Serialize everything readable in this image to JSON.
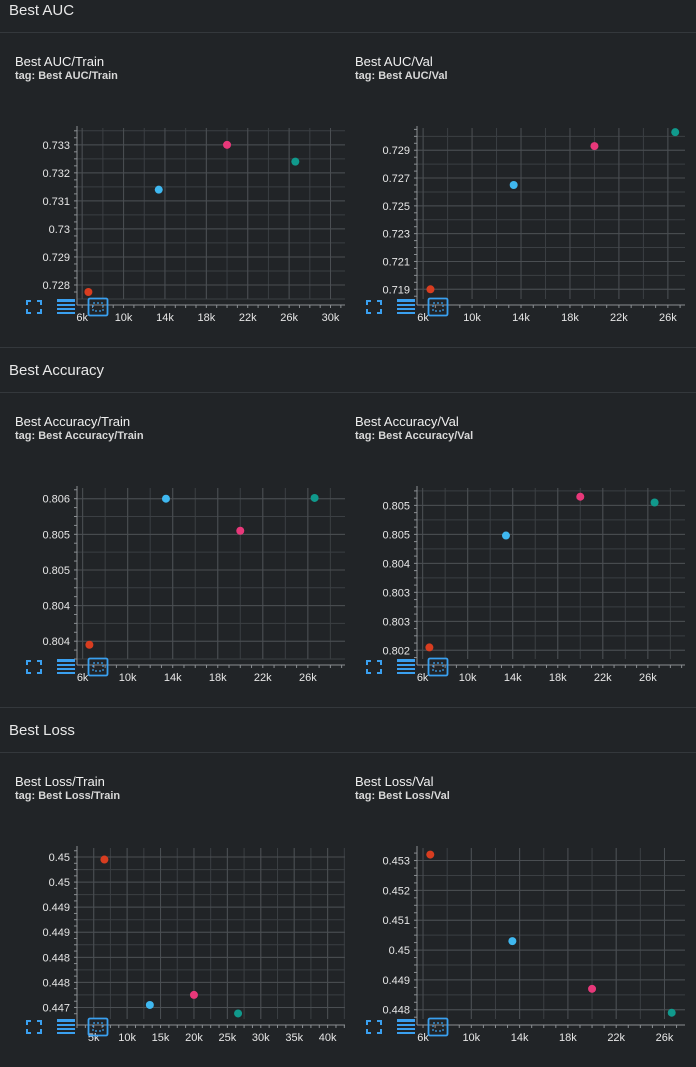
{
  "sections": [
    {
      "title": "Best AUC"
    },
    {
      "title": "Best Accuracy"
    },
    {
      "title": "Best Loss"
    }
  ],
  "colors": {
    "run1": "#d83d20",
    "run2": "#3fb8f0",
    "run3": "#e8387a",
    "run4": "#10998c"
  },
  "icons": [
    "fullscreen-icon",
    "data-table-icon",
    "fit-domain-icon"
  ],
  "chart_data": [
    {
      "type": "scatter",
      "title": "Best AUC/Train",
      "tag": "tag: Best AUC/Train",
      "xticks": [
        "6k",
        "10k",
        "14k",
        "18k",
        "22k",
        "26k",
        "30k"
      ],
      "xtick_values": [
        6000,
        10000,
        14000,
        18000,
        22000,
        26000,
        30000
      ],
      "yticks": [
        "0.728",
        "0.729",
        "0.73",
        "0.731",
        "0.732",
        "0.733"
      ],
      "ytick_values": [
        0.728,
        0.729,
        0.73,
        0.731,
        0.732,
        0.733
      ],
      "xlim": [
        5500,
        31400
      ],
      "ylim": [
        0.7275,
        0.7336
      ],
      "points": [
        {
          "x": 6600,
          "y": 0.72775,
          "color": "#d83d20"
        },
        {
          "x": 13400,
          "y": 0.7314,
          "color": "#3fb8f0"
        },
        {
          "x": 20000,
          "y": 0.733,
          "color": "#e8387a"
        },
        {
          "x": 26600,
          "y": 0.7324,
          "color": "#10998c"
        }
      ]
    },
    {
      "type": "scatter",
      "title": "Best AUC/Val",
      "tag": "tag: Best AUC/Val",
      "xticks": [
        "6k",
        "10k",
        "14k",
        "18k",
        "22k",
        "26k"
      ],
      "xtick_values": [
        6000,
        10000,
        14000,
        18000,
        22000,
        26000
      ],
      "yticks": [
        "0.719",
        "0.721",
        "0.723",
        "0.725",
        "0.727",
        "0.729"
      ],
      "ytick_values": [
        0.719,
        0.721,
        0.723,
        0.725,
        0.727,
        0.729
      ],
      "xlim": [
        5500,
        27400
      ],
      "ylim": [
        0.7183,
        0.7306
      ],
      "points": [
        {
          "x": 6600,
          "y": 0.719,
          "color": "#d83d20"
        },
        {
          "x": 13400,
          "y": 0.7265,
          "color": "#3fb8f0"
        },
        {
          "x": 20000,
          "y": 0.7293,
          "color": "#e8387a"
        },
        {
          "x": 26600,
          "y": 0.7303,
          "color": "#10998c"
        }
      ]
    },
    {
      "type": "scatter",
      "title": "Best Accuracy/Train",
      "tag": "tag: Best Accuracy/Train",
      "xticks": [
        "6k",
        "10k",
        "14k",
        "18k",
        "22k",
        "26k"
      ],
      "xtick_values": [
        6000,
        10000,
        14000,
        18000,
        22000,
        26000
      ],
      "yticks": [
        "0.804",
        "0.804",
        "0.805",
        "0.805",
        "0.806"
      ],
      "ytick_values": [
        0.8038,
        0.8043,
        0.8048,
        0.8053,
        0.8058
      ],
      "xlim": [
        5500,
        29300
      ],
      "ylim": [
        0.80355,
        0.80595
      ],
      "points": [
        {
          "x": 6600,
          "y": 0.80375,
          "color": "#d83d20"
        },
        {
          "x": 13400,
          "y": 0.8058,
          "color": "#3fb8f0"
        },
        {
          "x": 20000,
          "y": 0.80535,
          "color": "#e8387a"
        },
        {
          "x": 26600,
          "y": 0.80581,
          "color": "#10998c"
        }
      ]
    },
    {
      "type": "scatter",
      "title": "Best Accuracy/Val",
      "tag": "tag: Best Accuracy/Val",
      "xticks": [
        "6k",
        "10k",
        "14k",
        "18k",
        "22k",
        "26k"
      ],
      "xtick_values": [
        6000,
        10000,
        14000,
        18000,
        22000,
        26000
      ],
      "yticks": [
        "0.802",
        "0.803",
        "0.803",
        "0.804",
        "0.805",
        "0.805"
      ],
      "ytick_values": [
        0.802,
        0.8025,
        0.803,
        0.8035,
        0.804,
        0.8045
      ],
      "xlim": [
        5500,
        29300
      ],
      "ylim": [
        0.80185,
        0.8048
      ],
      "points": [
        {
          "x": 6600,
          "y": 0.80205,
          "color": "#d83d20"
        },
        {
          "x": 13400,
          "y": 0.80398,
          "color": "#3fb8f0"
        },
        {
          "x": 20000,
          "y": 0.80465,
          "color": "#e8387a"
        },
        {
          "x": 26600,
          "y": 0.80455,
          "color": "#10998c"
        }
      ]
    },
    {
      "type": "scatter",
      "title": "Best Loss/Train",
      "tag": "tag: Best Loss/Train",
      "xticks": [
        "5k",
        "10k",
        "15k",
        "20k",
        "25k",
        "30k",
        "35k",
        "40k"
      ],
      "xtick_values": [
        5000,
        10000,
        15000,
        20000,
        25000,
        30000,
        35000,
        40000
      ],
      "yticks": [
        "0.447",
        "0.448",
        "0.448",
        "0.449",
        "0.449",
        "0.45",
        "0.45"
      ],
      "ytick_values": [
        0.447,
        0.4475,
        0.448,
        0.4485,
        0.449,
        0.4495,
        0.45
      ],
      "xlim": [
        2500,
        42600
      ],
      "ylim": [
        0.44677,
        0.45018
      ],
      "points": [
        {
          "x": 6600,
          "y": 0.44995,
          "color": "#d83d20"
        },
        {
          "x": 13400,
          "y": 0.44705,
          "color": "#3fb8f0"
        },
        {
          "x": 20000,
          "y": 0.44725,
          "color": "#e8387a"
        },
        {
          "x": 26600,
          "y": 0.44688,
          "color": "#10998c"
        }
      ]
    },
    {
      "type": "scatter",
      "title": "Best Loss/Val",
      "tag": "tag: Best Loss/Val",
      "xticks": [
        "6k",
        "10k",
        "14k",
        "18k",
        "22k",
        "26k"
      ],
      "xtick_values": [
        6000,
        10000,
        14000,
        18000,
        22000,
        26000
      ],
      "yticks": [
        "0.448",
        "0.449",
        "0.45",
        "0.451",
        "0.452",
        "0.453"
      ],
      "ytick_values": [
        0.448,
        0.449,
        0.45,
        0.451,
        0.452,
        0.453
      ],
      "xlim": [
        5500,
        27700
      ],
      "ylim": [
        0.44769,
        0.45342
      ],
      "points": [
        {
          "x": 6600,
          "y": 0.4532,
          "color": "#d83d20"
        },
        {
          "x": 13400,
          "y": 0.4503,
          "color": "#3fb8f0"
        },
        {
          "x": 20000,
          "y": 0.4487,
          "color": "#e8387a"
        },
        {
          "x": 26600,
          "y": 0.4479,
          "color": "#10998c"
        }
      ]
    }
  ]
}
